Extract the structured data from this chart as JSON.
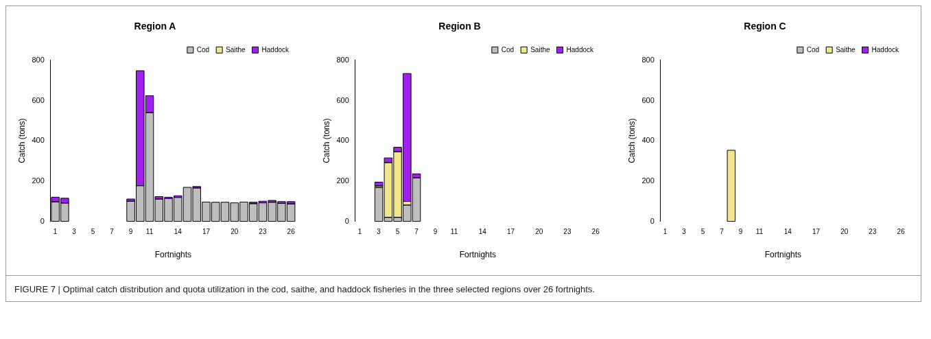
{
  "chart_data": [
    {
      "type": "bar",
      "title": "Region A",
      "xlabel": "Fortnights",
      "ylabel": "Catch (tons)",
      "stacked": true,
      "legend": "top right",
      "grid": false,
      "ylim": [
        0,
        800
      ],
      "yticks": [
        0,
        200,
        400,
        600,
        800
      ],
      "categories": [
        "1",
        null,
        "3",
        null,
        "5",
        null,
        "7",
        null,
        "9",
        null,
        "11",
        null,
        null,
        "14",
        null,
        null,
        "17",
        null,
        null,
        "20",
        null,
        null,
        "23",
        null,
        null,
        "26"
      ],
      "series": [
        {
          "name": "Cod",
          "color": "#bebebe",
          "values": [
            97,
            91,
            0,
            0,
            0,
            0,
            0,
            0,
            100,
            177,
            540,
            111,
            113,
            119,
            169,
            166,
            96,
            95,
            95,
            92,
            96,
            88,
            92,
            95,
            89,
            87
          ]
        },
        {
          "name": "Saithe",
          "color": "#f0e68c",
          "values": [
            0,
            0,
            0,
            0,
            0,
            0,
            0,
            0,
            0,
            0,
            0,
            0,
            0,
            0,
            0,
            0,
            0,
            0,
            0,
            0,
            0,
            0,
            0,
            0,
            0,
            0
          ]
        },
        {
          "name": "Haddock",
          "color": "#a020f0",
          "values": [
            23,
            24,
            0,
            0,
            0,
            0,
            0,
            0,
            11,
            571,
            84,
            12,
            7,
            8,
            null,
            7,
            0,
            0,
            0,
            null,
            null,
            7,
            8,
            9,
            9,
            11
          ]
        }
      ],
      "annotations": [
        "FIGURE 7 | Optimal catch distribution and quota utilization in the cod, saithe, and haddock fisheries in the three selected regions over 26 fortnights."
      ]
    },
    {
      "type": "bar",
      "title": "Region B",
      "xlabel": "Fortnights",
      "ylabel": "Catch (tons)",
      "stacked": true,
      "legend": "top right",
      "grid": false,
      "ylim": [
        0,
        800
      ],
      "yticks": [
        0,
        200,
        400,
        600,
        800
      ],
      "categories": [
        "1",
        null,
        "3",
        null,
        "5",
        null,
        "7",
        null,
        "9",
        null,
        "11",
        null,
        null,
        "14",
        null,
        null,
        "17",
        null,
        null,
        "20",
        null,
        null,
        "23",
        null,
        null,
        "26"
      ],
      "series": [
        {
          "name": "Cod",
          "color": "#bebebe",
          "values": [
            0,
            0,
            168,
            20,
            20,
            81,
            216,
            0,
            0,
            0,
            0,
            0,
            0,
            0,
            0,
            0,
            0,
            0,
            0,
            0,
            0,
            0,
            0,
            0,
            0,
            0
          ]
        },
        {
          "name": "Saithe",
          "color": "#f0e68c",
          "values": [
            0,
            0,
            8,
            272,
            326,
            18,
            null,
            0,
            0,
            0,
            0,
            0,
            0,
            0,
            0,
            0,
            0,
            0,
            0,
            0,
            0,
            0,
            0,
            0,
            0,
            0
          ]
        },
        {
          "name": "Haddock",
          "color": "#a020f0",
          "values": [
            0,
            0,
            19,
            23,
            22,
            635,
            20,
            0,
            0,
            0,
            0,
            0,
            0,
            0,
            0,
            0,
            0,
            0,
            0,
            0,
            0,
            0,
            0,
            0,
            0,
            0
          ]
        }
      ]
    },
    {
      "type": "bar",
      "title": "Region C",
      "xlabel": "Fortnights",
      "ylabel": "Catch (tons)",
      "stacked": true,
      "legend": "top right",
      "grid": false,
      "ylim": [
        0,
        800
      ],
      "yticks": [
        0,
        200,
        400,
        600,
        800
      ],
      "categories": [
        "1",
        null,
        "3",
        null,
        "5",
        null,
        "7",
        null,
        "9",
        null,
        "11",
        null,
        null,
        "14",
        null,
        null,
        "17",
        null,
        null,
        "20",
        null,
        null,
        "23",
        null,
        null,
        "26"
      ],
      "series": [
        {
          "name": "Cod",
          "color": "#bebebe",
          "values": [
            0,
            0,
            0,
            0,
            0,
            0,
            0,
            0,
            0,
            0,
            0,
            0,
            0,
            0,
            0,
            0,
            0,
            0,
            0,
            0,
            0,
            0,
            0,
            0,
            0,
            0
          ]
        },
        {
          "name": "Saithe",
          "color": "#f0e68c",
          "values": [
            0,
            0,
            0,
            0,
            0,
            0,
            0,
            353,
            0,
            0,
            0,
            0,
            0,
            0,
            0,
            0,
            0,
            0,
            0,
            0,
            0,
            0,
            0,
            0,
            0,
            0
          ]
        },
        {
          "name": "Haddock",
          "color": "#a020f0",
          "values": [
            0,
            0,
            0,
            0,
            0,
            0,
            0,
            0,
            0,
            0,
            0,
            0,
            0,
            0,
            0,
            0,
            0,
            0,
            0,
            0,
            0,
            0,
            0,
            0,
            0,
            0
          ]
        }
      ]
    }
  ]
}
